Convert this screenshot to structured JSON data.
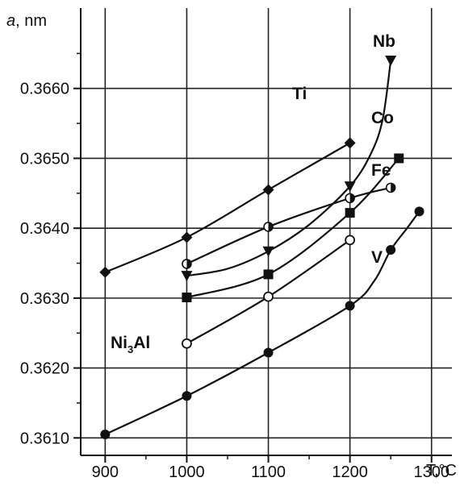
{
  "chart_data": {
    "type": "line",
    "title": "",
    "xlabel": "T,°C",
    "ylabel_prefix": "a",
    "ylabel_suffix": ", nm",
    "xlim": [
      870,
      1325
    ],
    "ylim": [
      0.36075,
      0.36715
    ],
    "x_ticks": [
      900,
      1000,
      1100,
      1200,
      1300
    ],
    "x_tick_labels": [
      "900",
      "1000",
      "1100",
      "1200",
      "1300"
    ],
    "y_ticks": [
      0.361,
      0.362,
      0.363,
      0.364,
      0.365,
      0.366
    ],
    "y_tick_labels": [
      "0.3610",
      "0.3620",
      "0.3630",
      "0.3640",
      "0.3650",
      "0.3660"
    ],
    "grid": true,
    "series": [
      {
        "name": "Ni3Al",
        "label_main": "Ni",
        "label_sub": "3",
        "label_tail": "Al",
        "marker": "open-circle",
        "x": [
          1000,
          1100,
          1200
        ],
        "y": [
          0.36235,
          0.36302,
          0.36383
        ]
      },
      {
        "name": "Ti",
        "marker": "diamond",
        "x": [
          900,
          1000,
          1100,
          1200
        ],
        "y": [
          0.36337,
          0.36387,
          0.36455,
          0.36522
        ]
      },
      {
        "name": "Nb",
        "marker": "triangle-down",
        "x": [
          1000,
          1100,
          1200,
          1250
        ],
        "y": [
          0.36332,
          0.36367,
          0.3646,
          0.3664
        ],
        "curve": [
          [
            1000,
            0.36332
          ],
          [
            1050,
            0.36342
          ],
          [
            1100,
            0.36367
          ],
          [
            1150,
            0.36405
          ],
          [
            1200,
            0.3646
          ],
          [
            1225,
            0.36505
          ],
          [
            1240,
            0.36555
          ],
          [
            1250,
            0.3664
          ]
        ]
      },
      {
        "name": "Co",
        "marker": "square",
        "x": [
          1000,
          1100,
          1200,
          1260
        ],
        "y": [
          0.36301,
          0.36334,
          0.36422,
          0.365
        ]
      },
      {
        "name": "Fe",
        "marker": "half-circle",
        "x": [
          1000,
          1100,
          1200,
          1250
        ],
        "y": [
          0.36349,
          0.36402,
          0.36443,
          0.36458
        ]
      },
      {
        "name": "V",
        "marker": "circle",
        "x": [
          900,
          1000,
          1100,
          1200,
          1250,
          1285
        ],
        "y": [
          0.36105,
          0.3616,
          0.36222,
          0.36289,
          0.36369,
          0.36424
        ],
        "curve": [
          [
            900,
            0.36105
          ],
          [
            1000,
            0.3616
          ],
          [
            1100,
            0.36222
          ],
          [
            1200,
            0.36289
          ],
          [
            1230,
            0.36325
          ],
          [
            1250,
            0.36369
          ],
          [
            1270,
            0.364
          ],
          [
            1285,
            0.36424
          ]
        ]
      }
    ]
  }
}
